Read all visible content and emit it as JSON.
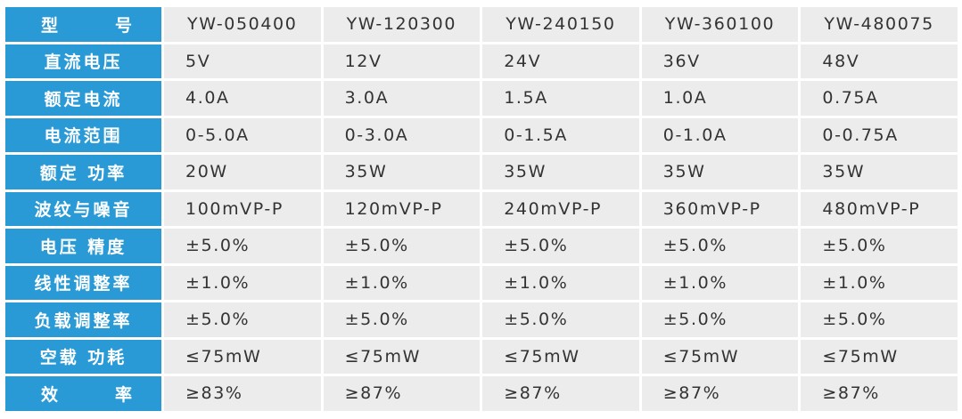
{
  "table": {
    "header": {
      "label": "型  号",
      "label_parts": [
        "型",
        "号"
      ],
      "models": [
        "YW-050400",
        "YW-120300",
        "YW-240150",
        "YW-360100",
        "YW-480075"
      ]
    },
    "rows": [
      {
        "label": "直流电压",
        "values": [
          "5V",
          "12V",
          "24V",
          "36V",
          "48V"
        ]
      },
      {
        "label": "额定电流",
        "values": [
          "4.0A",
          "3.0A",
          "1.5A",
          "1.0A",
          "0.75A"
        ]
      },
      {
        "label": "电流范围",
        "values": [
          "0-5.0A",
          "0-3.0A",
          "0-1.5A",
          "0-1.0A",
          "0-0.75A"
        ]
      },
      {
        "label": "额定 功率",
        "values": [
          "20W",
          "35W",
          "35W",
          "35W",
          "35W"
        ]
      },
      {
        "label": "波纹与噪音",
        "values": [
          "100mVP-P",
          "120mVP-P",
          "240mVP-P",
          "360mVP-P",
          "480mVP-P"
        ]
      },
      {
        "label": "电压 精度",
        "values": [
          "±5.0%",
          "±5.0%",
          "±5.0%",
          "±5.0%",
          "±5.0%"
        ]
      },
      {
        "label": "线性调整率",
        "values": [
          "±1.0%",
          "±1.0%",
          "±1.0%",
          "±1.0%",
          "±1.0%"
        ]
      },
      {
        "label": "负载调整率",
        "values": [
          "±5.0%",
          "±5.0%",
          "±5.0%",
          "±5.0%",
          "±5.0%"
        ]
      },
      {
        "label": "空载 功耗",
        "values": [
          "≤75mW",
          "≤75mW",
          "≤75mW",
          "≤75mW",
          "≤75mW"
        ]
      },
      {
        "label": "效  率",
        "label_parts": [
          "效",
          "率"
        ],
        "values": [
          "≥83%",
          "≥87%",
          "≥87%",
          "≥87%",
          "≥87%"
        ]
      }
    ]
  },
  "colors": {
    "label_bg": "#2a9ad6",
    "cell_bg": "#ececec",
    "text": "#333333",
    "label_text": "#ffffff"
  }
}
